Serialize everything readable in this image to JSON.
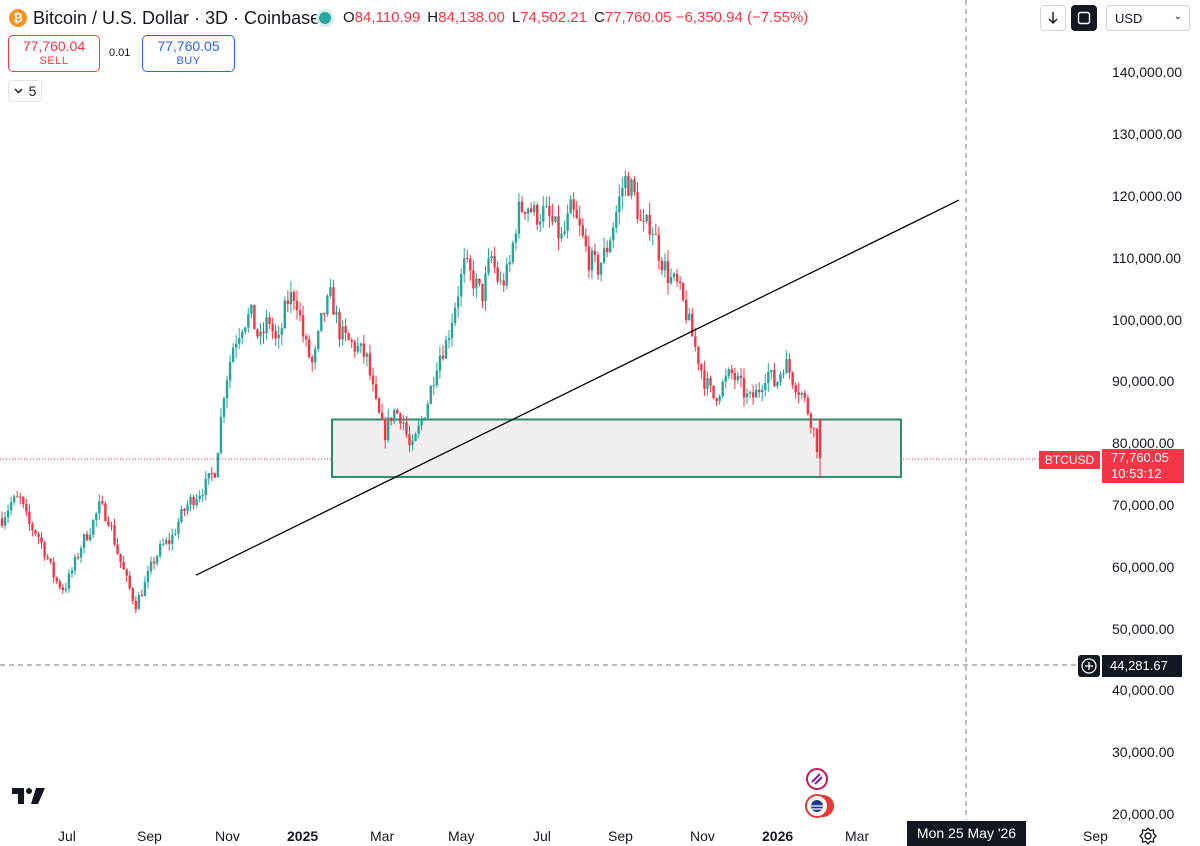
{
  "header": {
    "logo_glyph": "₿",
    "symbol_title": "Bitcoin / U.S. Dollar · 3D · Coinbase",
    "ohlc": {
      "open_key": "O",
      "open": "84,110.99",
      "high_key": "H",
      "high": "84,138.00",
      "low_key": "L",
      "low": "74,502.21",
      "close_key": "C",
      "close": "77,760.05",
      "change": "−6,350.94 (−7.55%)"
    }
  },
  "trade": {
    "sell_price": "77,760.04",
    "sell_label": "SELL",
    "spread": "0.01",
    "buy_price": "77,760.05",
    "buy_label": "BUY"
  },
  "legend_collapse": {
    "count": "5",
    "icon": "chevron-down-icon"
  },
  "toolbar": {
    "currency": "USD",
    "download_icon": "arrow-down-icon",
    "fullscreen_icon": "fullscreen-icon"
  },
  "price_axis": {
    "labels": [
      "140,000.00",
      "130,000.00",
      "120,000.00",
      "110,000.00",
      "100,000.00",
      "90,000.00",
      "80,000.00",
      "70,000.00",
      "60,000.00",
      "50,000.00",
      "40,000.00",
      "30,000.00",
      "20,000.00"
    ]
  },
  "time_axis": {
    "labels": [
      "Jul",
      "Sep",
      "Nov",
      "2025",
      "Mar",
      "May",
      "Jul",
      "Sep",
      "Nov",
      "2026",
      "Mar",
      "Sep"
    ]
  },
  "last_price": {
    "symbol": "BTCUSD",
    "price": "77,760.05",
    "countdown": "10:53:12"
  },
  "crosshair": {
    "price": "44,281.67",
    "date": "Mon 25 May '26"
  },
  "colors": {
    "up": "#26a69a",
    "down": "#f23645",
    "zone_border": "#2e8b6e",
    "zone_fill": "#f0efef",
    "trendline": "#000000"
  },
  "chart_data": {
    "type": "candlestick",
    "ylim": [
      20000,
      140000
    ],
    "y_scale": "linear",
    "price_ticks": [
      140000,
      130000,
      120000,
      110000,
      100000,
      90000,
      80000,
      70000,
      60000,
      50000,
      40000,
      30000,
      20000
    ],
    "x_ticks": [
      "Jul",
      "Sep",
      "Nov",
      "2025",
      "Mar",
      "May",
      "Jul",
      "Sep",
      "Nov",
      "2026",
      "Mar",
      "Sep"
    ],
    "ohlc_last": {
      "open": 84110.99,
      "high": 84138.0,
      "low": 74502.21,
      "close": 77760.05
    },
    "approx_closes": [
      68000,
      70500,
      71200,
      67000,
      65500,
      62000,
      58000,
      56500,
      60000,
      64000,
      66500,
      70000,
      68000,
      62500,
      58000,
      54000,
      57000,
      61000,
      63500,
      64500,
      68000,
      70500,
      72000,
      73500,
      76000,
      89000,
      96000,
      99500,
      101000,
      96500,
      100500,
      95500,
      103000,
      104500,
      96500,
      92500,
      100500,
      104000,
      98000,
      96500,
      95500,
      94000,
      86500,
      81500,
      85500,
      84500,
      78500,
      83000,
      87500,
      94000,
      96500,
      103000,
      109000,
      106500,
      104000,
      110500,
      105500,
      108000,
      117500,
      119000,
      117000,
      117500,
      115500,
      113000,
      118000,
      114500,
      110000,
      108500,
      111500,
      117000,
      123000,
      121000,
      114500,
      116000,
      110500,
      107000,
      105500,
      101000,
      95500,
      90500,
      87500,
      89500,
      91500,
      89500,
      87000,
      88500,
      92000,
      89500,
      93500,
      90500,
      88000,
      84000,
      77760
    ],
    "annotations": {
      "support_zone": {
        "top": 84000,
        "bottom": 74700
      },
      "trendline": {
        "start": 58800,
        "end": 119500
      }
    }
  }
}
